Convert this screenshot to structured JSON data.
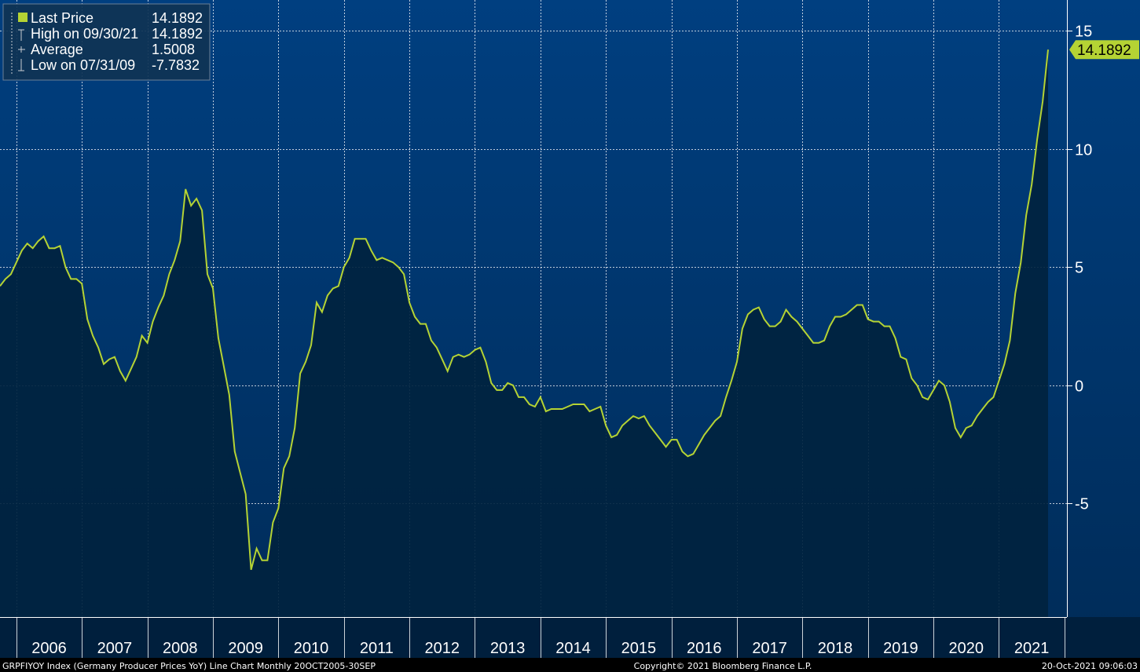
{
  "footer": {
    "left": "GRPFIYOY Index (Germany Producer Prices YoY) Line Chart  Monthly 20OCT2005-30SEP",
    "center": "Copyright© 2021 Bloomberg Finance L.P.",
    "right": "20-Oct-2021 09:06:03"
  },
  "legend": {
    "rows": [
      {
        "label": "Last Price",
        "value": "14.1892"
      },
      {
        "label": "High on 09/30/21",
        "value": "14.1892"
      },
      {
        "label": "Average",
        "value": "1.5008"
      },
      {
        "label": "Low on 07/31/09",
        "value": "-7.7832"
      }
    ]
  },
  "last_price_badge": "14.1892",
  "colors": {
    "line": "#b5d334",
    "fill": "#00233f",
    "background_top": "#003f80",
    "background_bottom": "#002b57",
    "axis_background": "#001f3d",
    "grid": "#ffffff",
    "text": "#ffffff"
  },
  "chart_data": {
    "type": "area",
    "title": "",
    "xlabel": "",
    "ylabel": "",
    "x_ticks": [
      "2006",
      "2007",
      "2008",
      "2009",
      "2010",
      "2011",
      "2012",
      "2013",
      "2014",
      "2015",
      "2016",
      "2017",
      "2018",
      "2019",
      "2020",
      "2021"
    ],
    "y_ticks": [
      15,
      10,
      5,
      0,
      -5
    ],
    "ylim": [
      -9.8,
      16.3
    ],
    "grid": true,
    "legend_position": "top-left",
    "series": [
      {
        "frequency": "monthly",
        "start": "2005-10",
        "end": "2021-09",
        "values": [
          4.2,
          4.5,
          4.7,
          5.2,
          5.7,
          6.0,
          5.8,
          6.1,
          6.3,
          5.8,
          5.8,
          5.9,
          5.0,
          4.5,
          4.5,
          4.3,
          2.8,
          2.1,
          1.6,
          0.9,
          1.1,
          1.2,
          0.6,
          0.2,
          0.7,
          1.2,
          2.1,
          1.8,
          2.7,
          3.3,
          3.8,
          4.7,
          5.3,
          6.1,
          8.3,
          7.6,
          7.9,
          7.4,
          4.7,
          4.1,
          2.0,
          0.8,
          -0.4,
          -2.8,
          -3.7,
          -4.6,
          -7.8,
          -6.9,
          -7.4,
          -7.4,
          -5.8,
          -5.2,
          -3.5,
          -3.0,
          -1.8,
          0.5,
          1.0,
          1.7,
          3.5,
          3.1,
          3.8,
          4.1,
          4.2,
          5.0,
          5.4,
          6.2,
          6.2,
          6.2,
          5.7,
          5.3,
          5.4,
          5.3,
          5.2,
          5.0,
          4.7,
          3.5,
          2.9,
          2.6,
          2.6,
          1.9,
          1.6,
          1.1,
          0.6,
          1.2,
          1.3,
          1.2,
          1.3,
          1.5,
          1.6,
          1.0,
          0.1,
          -0.2,
          -0.2,
          0.1,
          0.0,
          -0.5,
          -0.5,
          -0.8,
          -0.9,
          -0.5,
          -1.1,
          -1.0,
          -1.0,
          -1.0,
          -0.9,
          -0.8,
          -0.8,
          -0.8,
          -1.1,
          -1.0,
          -0.9,
          -1.7,
          -2.2,
          -2.1,
          -1.7,
          -1.5,
          -1.3,
          -1.4,
          -1.3,
          -1.7,
          -2.0,
          -2.3,
          -2.6,
          -2.3,
          -2.3,
          -2.8,
          -3.0,
          -2.9,
          -2.5,
          -2.1,
          -1.8,
          -1.5,
          -1.3,
          -0.5,
          0.2,
          1.0,
          2.4,
          3.0,
          3.2,
          3.3,
          2.8,
          2.5,
          2.5,
          2.7,
          3.2,
          2.9,
          2.7,
          2.4,
          2.1,
          1.8,
          1.8,
          1.9,
          2.5,
          2.9,
          2.9,
          3.0,
          3.2,
          3.4,
          3.4,
          2.8,
          2.7,
          2.7,
          2.5,
          2.5,
          2.0,
          1.2,
          1.1,
          0.3,
          0.0,
          -0.5,
          -0.6,
          -0.2,
          0.2,
          0.0,
          -0.7,
          -1.8,
          -2.2,
          -1.8,
          -1.7,
          -1.3,
          -1.0,
          -0.7,
          -0.5,
          0.2,
          0.9,
          1.9,
          3.9,
          5.2,
          7.2,
          8.5,
          10.4,
          12.0,
          14.2
        ]
      }
    ]
  }
}
